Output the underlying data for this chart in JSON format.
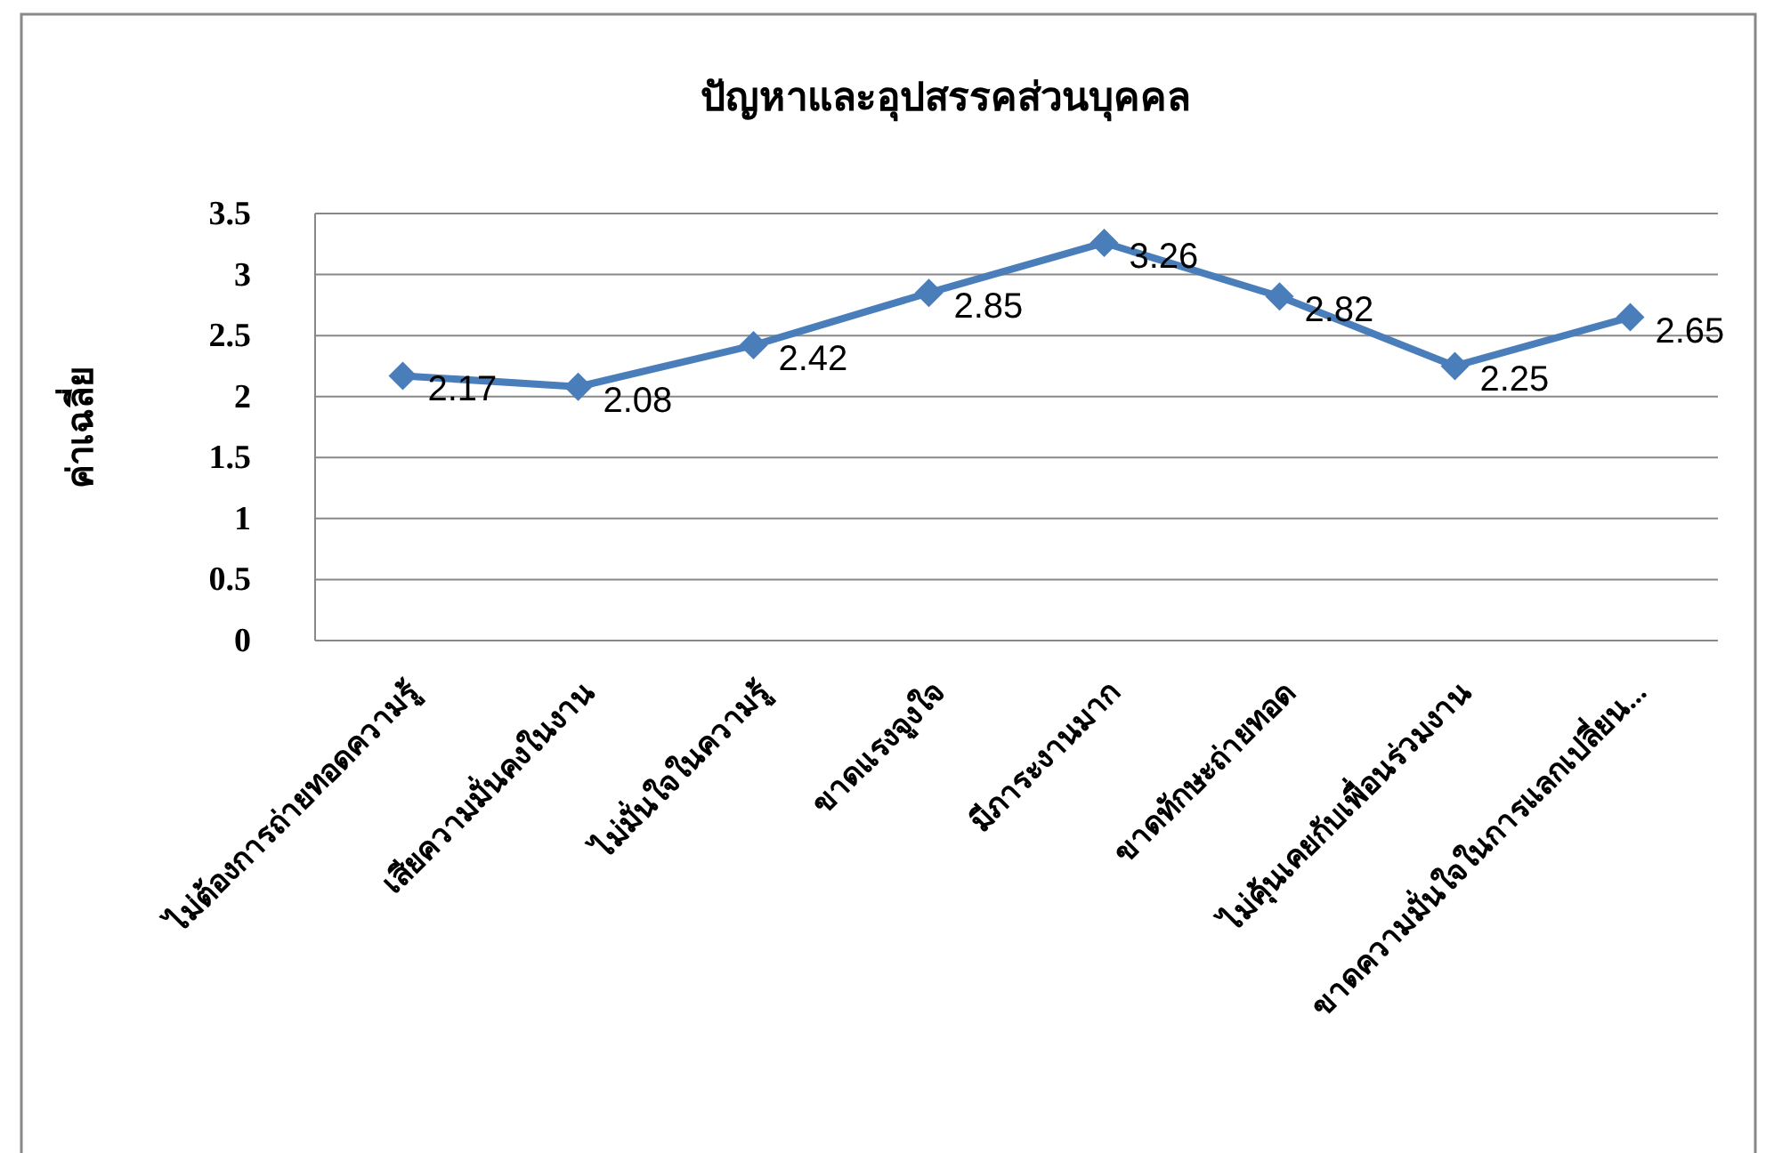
{
  "chart_data": {
    "type": "line",
    "title": "ปัญหาและอุปสรรคส่วนบุคคล",
    "ylabel": "ค่าเฉลี่ย",
    "categories": [
      "ไม่ต้องการถ่ายทอดความรู้",
      "เสียความมั่นคงในงาน",
      "ไม่มั่นใจในความรู้",
      "ขาดแรงจูงใจ",
      "มีภาระงานมาก",
      "ขาดทักษะถ่ายทอด",
      "ไม่คุ้นเคยกับเพื่อนร่วมงาน",
      "ขาดความมั่นใจในการแลกเปลี่ยน..."
    ],
    "series": [
      {
        "color": "#4a7ebb",
        "values": [
          2.17,
          2.08,
          2.42,
          2.85,
          3.26,
          2.82,
          2.25,
          2.65
        ]
      }
    ],
    "ylim": [
      0,
      3.5
    ],
    "yticks": [
      0,
      0.5,
      1,
      1.5,
      2,
      2.5,
      3,
      3.5
    ],
    "grid": "y",
    "marker": "diamond",
    "line_style": "solid",
    "data_labels": true
  }
}
